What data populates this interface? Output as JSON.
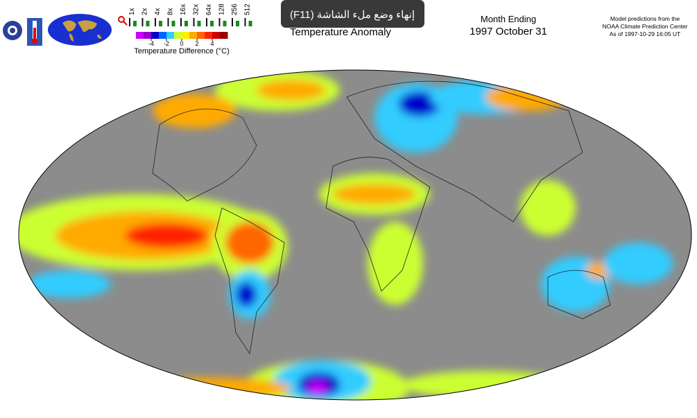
{
  "zoom": {
    "levels": [
      "1x",
      "2x",
      "4x",
      "8x",
      "16x",
      "32x",
      "64x",
      "128",
      "256",
      "512"
    ]
  },
  "legend": {
    "ticks": [
      -4,
      -2,
      0,
      2,
      4
    ],
    "lim": [
      -6,
      6
    ],
    "colors": [
      "#cc00ff",
      "#9900cc",
      "#0000cc",
      "#0066ff",
      "#33ccff",
      "#ccff33",
      "#ffee00",
      "#ffaa00",
      "#ff6600",
      "#ff2200",
      "#cc0000",
      "#990000"
    ],
    "label": "Temperature Difference (°C)"
  },
  "title": "Temperature Anomaly",
  "period": {
    "label": "Month Ending",
    "date": "1997 October 31"
  },
  "credit": {
    "line1": "Model predictions from the",
    "line2": "NOAA Climate Prediction Center",
    "line3": "As of 1997-10-29 16:05 UT"
  },
  "toast": "إنهاء وضع ملء الشاشة (F11)"
}
